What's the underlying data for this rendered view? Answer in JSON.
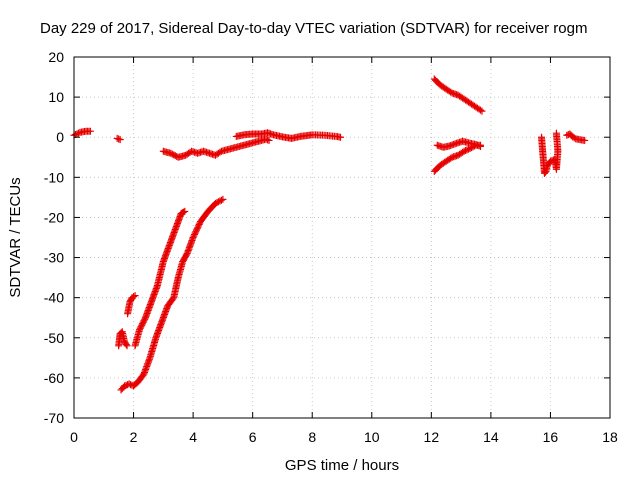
{
  "chart_data": {
    "type": "scatter",
    "title": "Day 229 of 2017, Sidereal Day-to-day VTEC variation (SDTVAR) for receiver rogm",
    "xlabel": "GPS time / hours",
    "ylabel": "SDTVAR / TECUs",
    "xlim": [
      0,
      18
    ],
    "ylim": [
      -70,
      20
    ],
    "xticks": [
      "0",
      "2",
      "4",
      "6",
      "8",
      "10",
      "12",
      "14",
      "16",
      "18"
    ],
    "yticks": [
      "20",
      "10",
      "0",
      "-10",
      "-20",
      "-30",
      "-40",
      "-50",
      "-60",
      "-70"
    ],
    "grid": true,
    "marker": "+",
    "color": "#e60000",
    "series": [
      {
        "segments": [
          [
            [
              0.0,
              0.5
            ],
            [
              0.2,
              1.2
            ],
            [
              0.4,
              1.5
            ],
            [
              0.55,
              1.5
            ]
          ],
          [
            [
              1.45,
              -0.3
            ],
            [
              1.55,
              -0.6
            ]
          ],
          [
            [
              1.5,
              -52
            ],
            [
              1.55,
              -49
            ],
            [
              1.62,
              -48.5
            ],
            [
              1.7,
              -51
            ],
            [
              1.78,
              -52
            ]
          ],
          [
            [
              1.8,
              -44
            ],
            [
              1.88,
              -41
            ],
            [
              1.95,
              -40
            ],
            [
              2.05,
              -39.5
            ]
          ],
          [
            [
              1.58,
              -63
            ],
            [
              1.7,
              -62
            ],
            [
              1.85,
              -61.5
            ],
            [
              2.0,
              -62
            ],
            [
              2.15,
              -61
            ],
            [
              2.35,
              -59
            ],
            [
              2.55,
              -55
            ],
            [
              2.75,
              -50
            ],
            [
              2.95,
              -46
            ],
            [
              3.15,
              -42
            ],
            [
              3.35,
              -40
            ],
            [
              3.5,
              -35
            ],
            [
              3.65,
              -31
            ],
            [
              3.8,
              -29
            ],
            [
              4.0,
              -25
            ],
            [
              4.25,
              -21
            ],
            [
              4.5,
              -18.5
            ],
            [
              4.75,
              -16.5
            ],
            [
              5.0,
              -15.5
            ]
          ],
          [
            [
              2.05,
              -52
            ],
            [
              2.2,
              -48
            ],
            [
              2.4,
              -45
            ],
            [
              2.6,
              -41
            ],
            [
              2.8,
              -37
            ],
            [
              3.0,
              -31
            ],
            [
              3.2,
              -27
            ],
            [
              3.4,
              -23
            ],
            [
              3.6,
              -19
            ],
            [
              3.72,
              -18.5
            ]
          ],
          [
            [
              3.0,
              -3.5
            ],
            [
              3.25,
              -4
            ],
            [
              3.5,
              -5
            ],
            [
              3.75,
              -4.5
            ],
            [
              3.95,
              -3.5
            ],
            [
              4.15,
              -4
            ],
            [
              4.35,
              -3.5
            ],
            [
              4.55,
              -4
            ],
            [
              4.75,
              -4.5
            ],
            [
              4.95,
              -3.5
            ],
            [
              5.2,
              -3
            ],
            [
              5.45,
              -2.5
            ],
            [
              5.7,
              -2
            ],
            [
              5.95,
              -1.5
            ],
            [
              6.2,
              -1
            ],
            [
              6.45,
              -0.5
            ],
            [
              6.55,
              -0.8
            ]
          ],
          [
            [
              5.45,
              0.2
            ],
            [
              5.7,
              0.6
            ],
            [
              6.0,
              0.8
            ],
            [
              6.3,
              0.8
            ],
            [
              6.5,
              1.1
            ],
            [
              6.7,
              0.6
            ],
            [
              7.0,
              0.1
            ],
            [
              7.3,
              -0.3
            ],
            [
              7.6,
              0.2
            ],
            [
              8.0,
              0.6
            ],
            [
              8.4,
              0.5
            ],
            [
              8.8,
              0.2
            ],
            [
              8.95,
              0.0
            ]
          ],
          [
            [
              12.1,
              14.5
            ],
            [
              12.3,
              13
            ],
            [
              12.5,
              12
            ],
            [
              12.7,
              11
            ],
            [
              12.9,
              10.5
            ],
            [
              13.1,
              9.5
            ],
            [
              13.3,
              8.5
            ],
            [
              13.5,
              7.5
            ],
            [
              13.7,
              6.5
            ]
          ],
          [
            [
              12.1,
              -8.5
            ],
            [
              12.3,
              -7
            ],
            [
              12.5,
              -6
            ],
            [
              12.7,
              -5
            ],
            [
              12.9,
              -4.5
            ],
            [
              13.1,
              -3.5
            ],
            [
              13.3,
              -2.8
            ],
            [
              13.5,
              -2
            ],
            [
              13.65,
              -2
            ]
          ],
          [
            [
              12.2,
              -2
            ],
            [
              12.4,
              -2.5
            ],
            [
              12.6,
              -2.2
            ],
            [
              12.85,
              -1.5
            ],
            [
              13.05,
              -1
            ],
            [
              13.3,
              -1.5
            ],
            [
              13.5,
              -1.8
            ],
            [
              13.65,
              -2.3
            ]
          ],
          [
            [
              15.7,
              0
            ],
            [
              15.8,
              -9
            ],
            [
              15.85,
              -8.5
            ],
            [
              15.9,
              -7
            ],
            [
              16.0,
              -6
            ],
            [
              16.15,
              -5.5
            ],
            [
              16.2,
              -8
            ],
            [
              16.25,
              -3.5
            ],
            [
              16.2,
              1
            ]
          ],
          [
            [
              16.55,
              0.5
            ],
            [
              16.65,
              0.8
            ],
            [
              16.75,
              0.1
            ],
            [
              16.85,
              -0.4
            ],
            [
              17.05,
              -0.7
            ],
            [
              17.15,
              -0.8
            ]
          ]
        ]
      }
    ]
  }
}
